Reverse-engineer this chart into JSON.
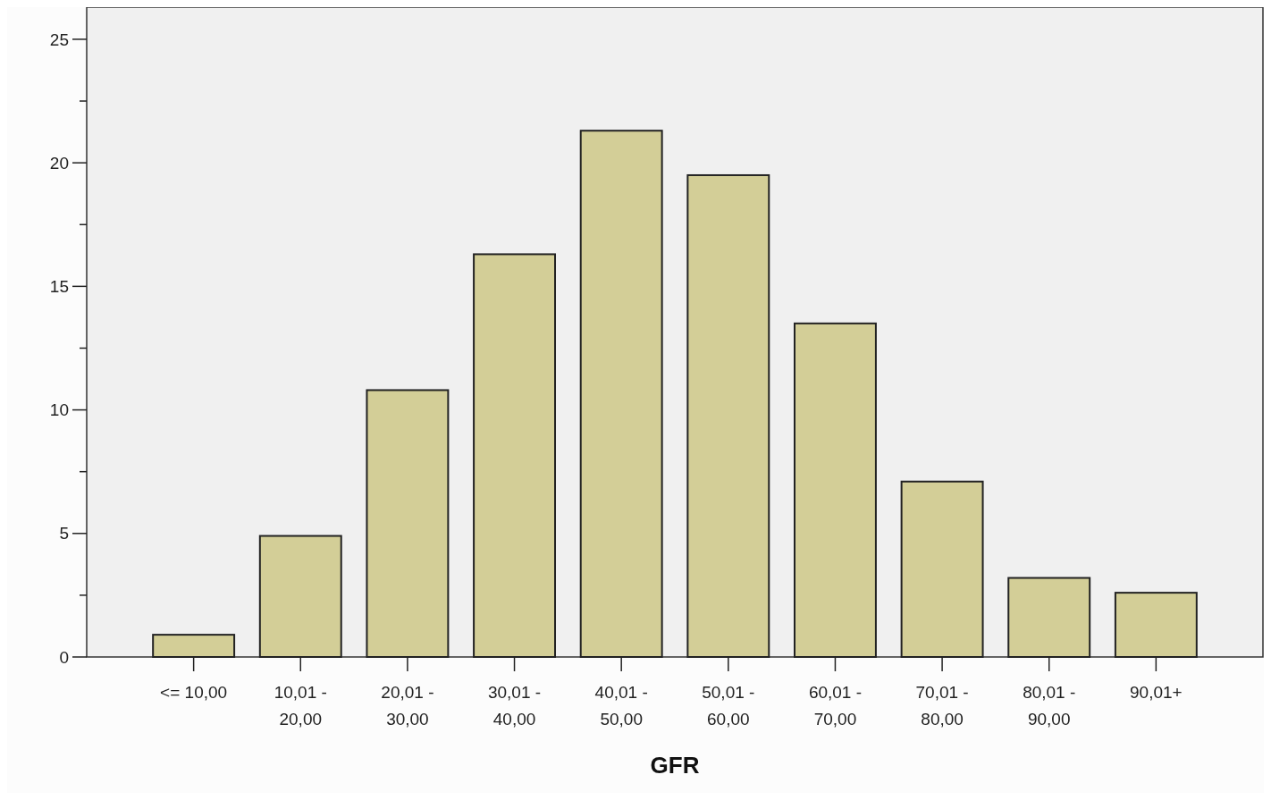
{
  "chart_data": {
    "type": "bar",
    "xlabel": "GFR",
    "categories": [
      "<= 10,00",
      "10,01 - 20,00",
      "20,01 - 30,00",
      "30,01 - 40,00",
      "40,01 - 50,00",
      "50,01 - 60,00",
      "60,01 - 70,00",
      "70,01 - 80,00",
      "80,01 - 90,00",
      "90,01+"
    ],
    "values": [
      0.9,
      4.9,
      10.8,
      16.3,
      21.3,
      19.5,
      13.5,
      7.1,
      3.2,
      2.6
    ],
    "color": "#d3ce97",
    "ylim": [
      0,
      26.3
    ],
    "yticks": [
      0,
      {
        "value": 2.5,
        "label": null
      },
      5,
      {
        "value": 7.5,
        "label": null
      },
      10,
      {
        "value": 12.5,
        "label": null
      },
      15,
      {
        "value": 17.5,
        "label": null
      },
      20,
      {
        "value": 22.5,
        "label": null
      },
      25
    ],
    "grid": false
  }
}
